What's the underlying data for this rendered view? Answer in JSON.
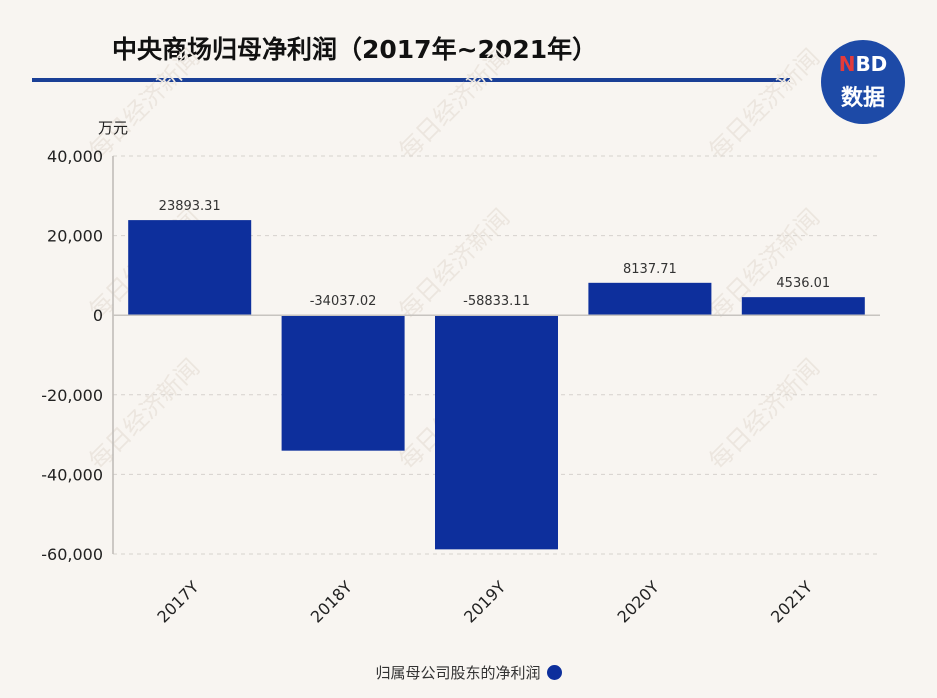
{
  "header": {
    "title": "中央商场归母净利润（2017年~2021年）"
  },
  "logo": {
    "line1_n": "N",
    "line1_rest": "BD",
    "line2": "数据"
  },
  "watermark": "每日经济新闻",
  "colors": {
    "bar": "#0d2f9c",
    "title_rule": "#1a3f96",
    "logo_bg": "#1d4aa7",
    "background": "#f8f5f1"
  },
  "chart_data": {
    "type": "bar",
    "title": "中央商场归母净利润（2017年~2021年）",
    "unit_label": "万元",
    "categories": [
      "2017Y",
      "2018Y",
      "2019Y",
      "2020Y",
      "2021Y"
    ],
    "series": [
      {
        "name": "归属母公司股东的净利润",
        "values": [
          23893.31,
          -34037.02,
          -58833.11,
          8137.71,
          4536.01
        ],
        "labels": [
          "23893.31",
          "-34037.02",
          "-58833.11",
          "8137.71",
          "4536.01"
        ]
      }
    ],
    "yticks": [
      40000,
      20000,
      0,
      -20000,
      -40000,
      -60000
    ],
    "ytick_labels": [
      "40,000",
      "20,000",
      "0",
      "-20,000",
      "-40,000",
      "-60,000"
    ],
    "ylim": [
      -60000,
      40000
    ],
    "grid": true,
    "legend_position": "bottom"
  }
}
